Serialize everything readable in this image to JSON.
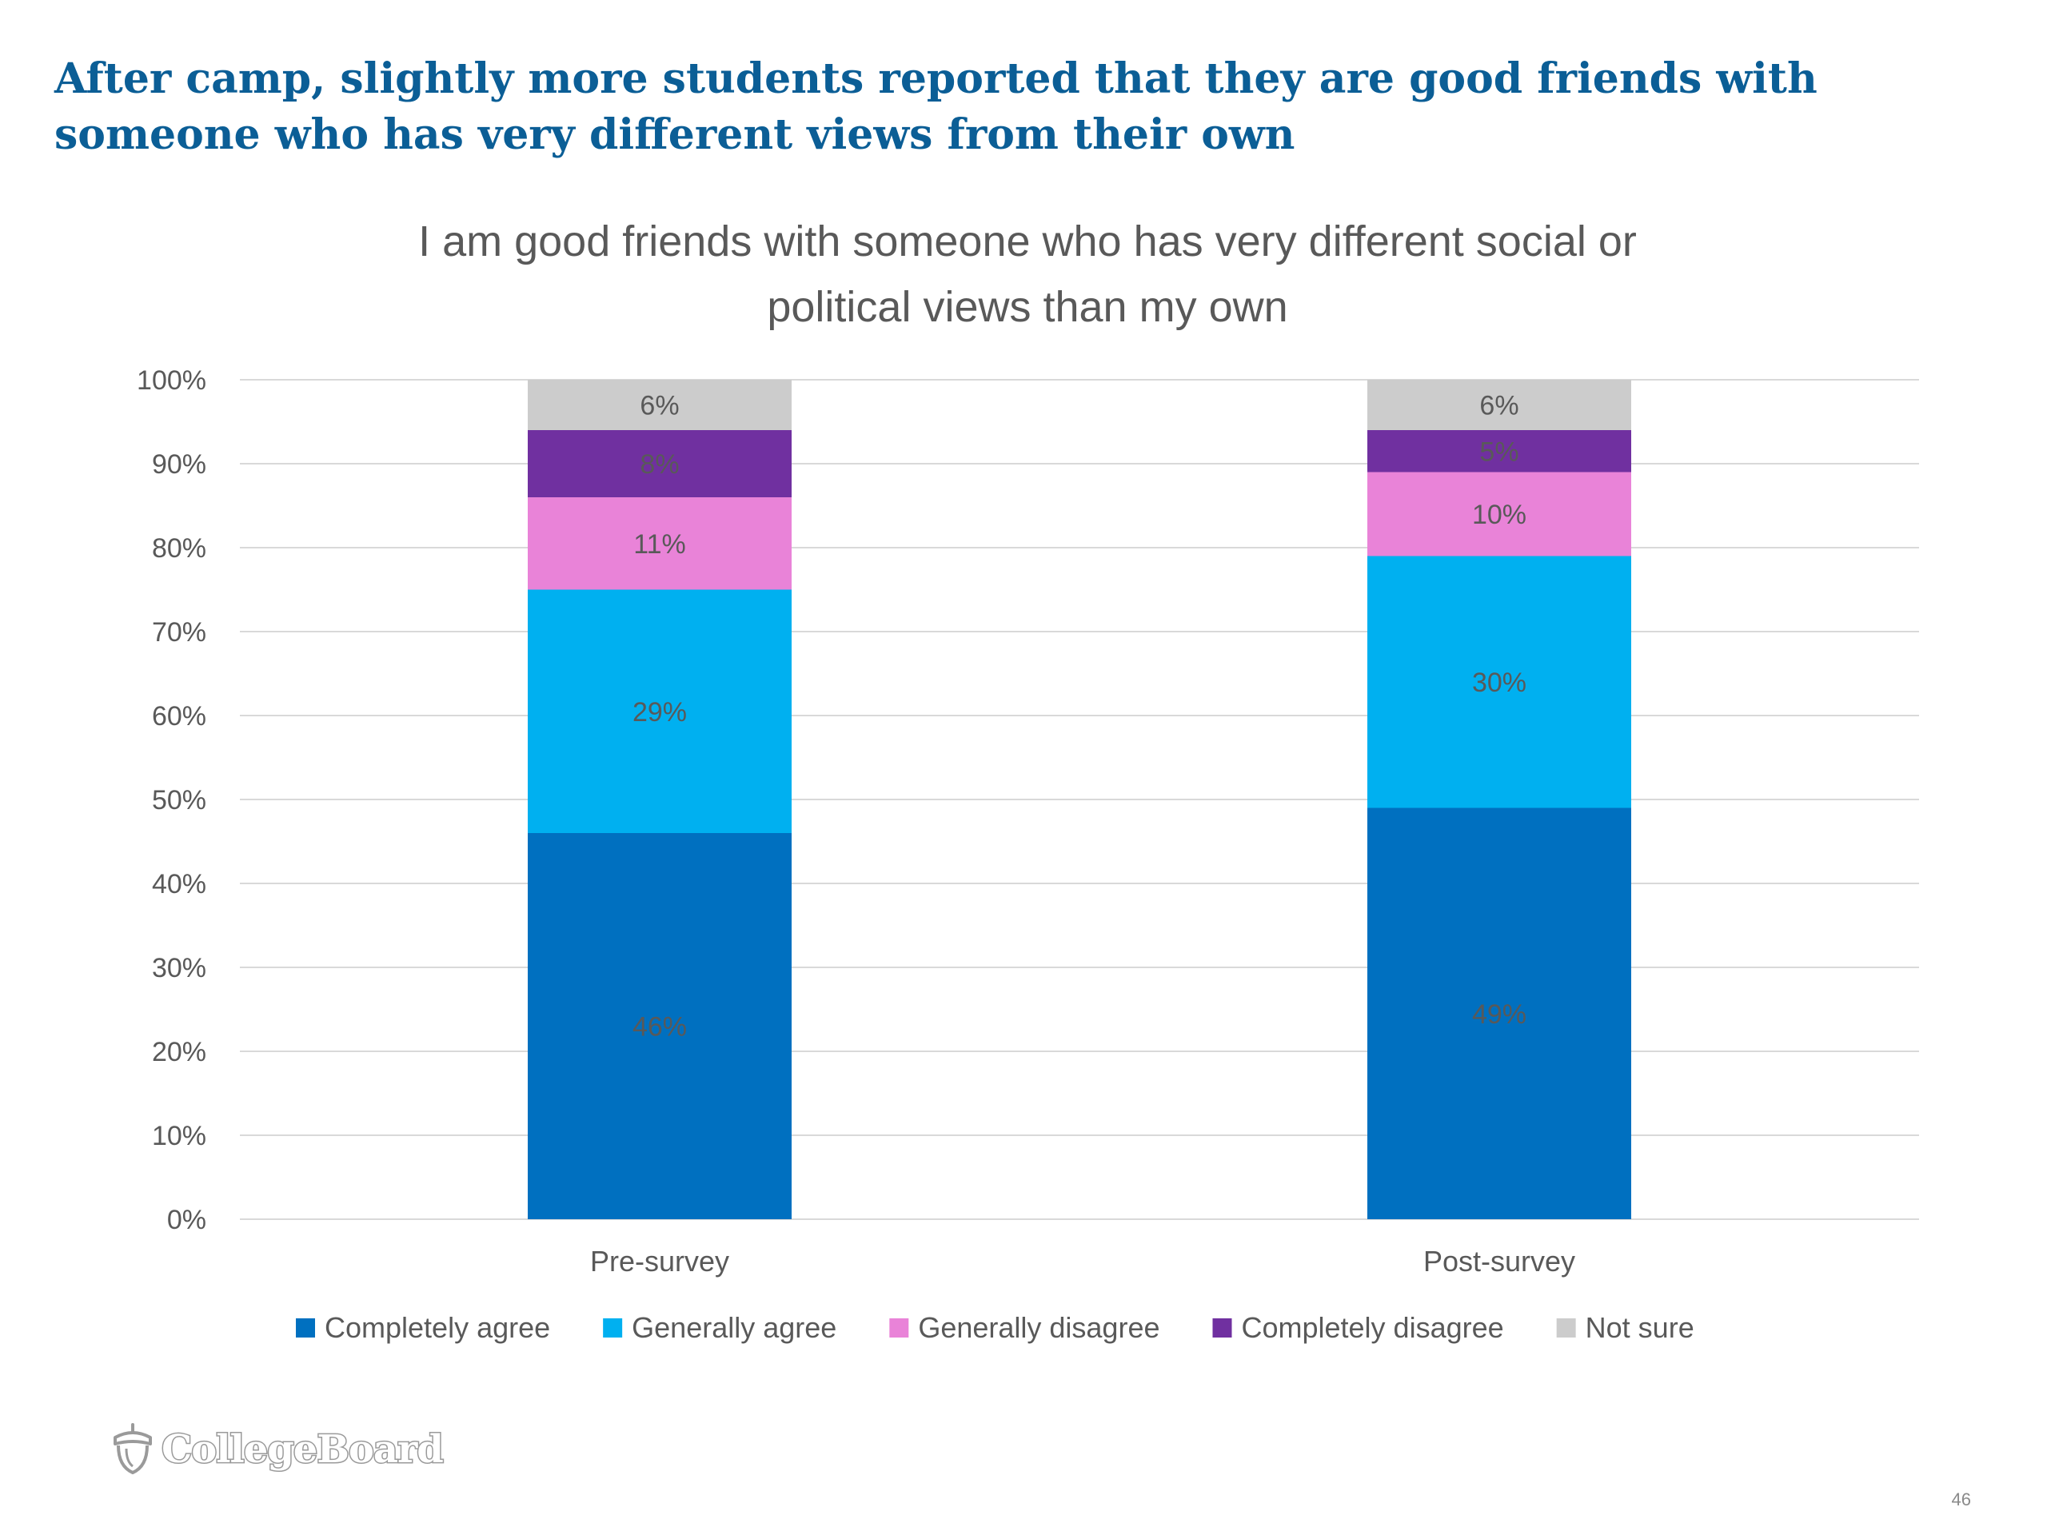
{
  "slide": {
    "title": "After camp, slightly more students reported that they are good friends with someone who has very different views from their own",
    "logo_text": "CollegeBoard",
    "page_number": "46"
  },
  "colors": {
    "title": "#0b5e96",
    "text": "#595959",
    "gridline": "#d9d9d9"
  },
  "chart_data": {
    "type": "bar",
    "stacked": true,
    "title": "I am good friends with someone who has very different social or political views than my own",
    "title_lines": [
      "I am good friends with someone who has very different social or",
      "political views than my own"
    ],
    "categories": [
      "Pre-survey",
      "Post-survey"
    ],
    "series": [
      {
        "name": "Completely agree",
        "values": [
          46,
          49
        ],
        "labels": [
          "46%",
          "49%"
        ],
        "color": "#0070c0"
      },
      {
        "name": "Generally agree",
        "values": [
          29,
          30
        ],
        "labels": [
          "29%",
          "30%"
        ],
        "color": "#00b0f0"
      },
      {
        "name": "Generally disagree",
        "values": [
          11,
          10
        ],
        "labels": [
          "11%",
          "10%"
        ],
        "color": "#e983d8"
      },
      {
        "name": "Completely disagree",
        "values": [
          8,
          5
        ],
        "labels": [
          "8%",
          "5%"
        ],
        "color": "#7030a0"
      },
      {
        "name": "Not sure",
        "values": [
          6,
          6
        ],
        "labels": [
          "6%",
          "6%"
        ],
        "color": "#cccccc"
      }
    ],
    "ylim": [
      0,
      100
    ],
    "yticks": [
      0,
      10,
      20,
      30,
      40,
      50,
      60,
      70,
      80,
      90,
      100
    ],
    "ytick_labels": [
      "0%",
      "10%",
      "20%",
      "30%",
      "40%",
      "50%",
      "60%",
      "70%",
      "80%",
      "90%",
      "100%"
    ],
    "grid": true,
    "legend_position": "bottom"
  }
}
